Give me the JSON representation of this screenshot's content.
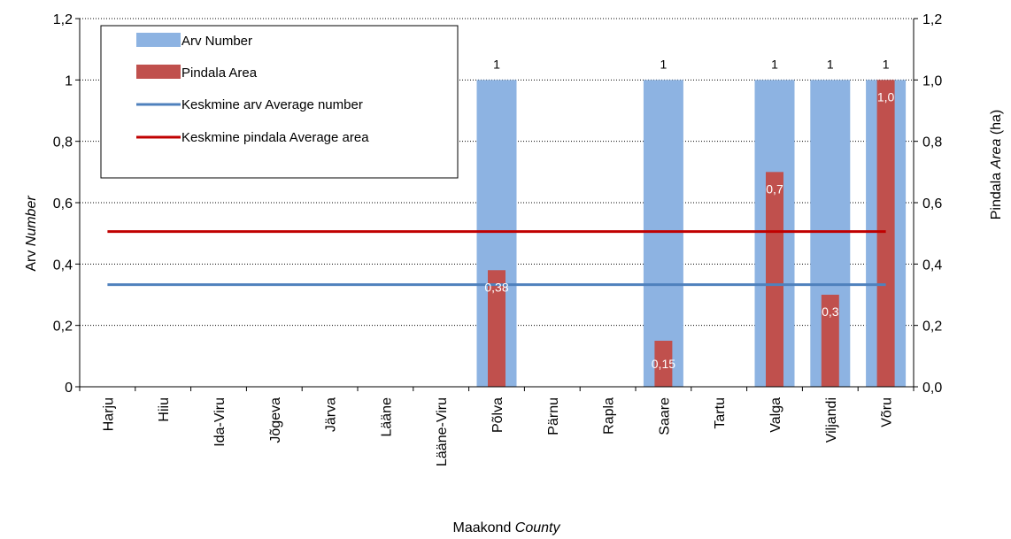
{
  "chart_data": {
    "type": "bar",
    "categories": [
      "Harju",
      "Hiiu",
      "Ida-Viru",
      "Jõgeva",
      "Järva",
      "Lääne",
      "Lääne-Viru",
      "Põlva",
      "Pärnu",
      "Rapla",
      "Saare",
      "Tartu",
      "Valga",
      "Viljandi",
      "Võru"
    ],
    "series": [
      {
        "name": "Arv Number",
        "axis": "left",
        "kind": "bar",
        "color": "#8DB3E2",
        "values": [
          null,
          null,
          null,
          null,
          null,
          null,
          null,
          1,
          null,
          null,
          1,
          null,
          1,
          1,
          1
        ],
        "labels": [
          "",
          "",
          "",
          "",
          "",
          "",
          "",
          "1",
          "",
          "",
          "1",
          "",
          "1",
          "1",
          "1"
        ]
      },
      {
        "name": "Pindala Area",
        "axis": "right",
        "kind": "bar",
        "color": "#C0504D",
        "values": [
          null,
          null,
          null,
          null,
          null,
          null,
          null,
          0.38,
          null,
          null,
          0.15,
          null,
          0.7,
          0.3,
          1.0
        ],
        "labels": [
          "",
          "",
          "",
          "",
          "",
          "",
          "",
          "0,38",
          "",
          "",
          "0,15",
          "",
          "0,7",
          "0,3",
          "1,0"
        ]
      },
      {
        "name": "Keskmine arv Average number",
        "axis": "left",
        "kind": "line",
        "color": "#4F81BD",
        "values": [
          0.333,
          0.333,
          0.333,
          0.333,
          0.333,
          0.333,
          0.333,
          0.333,
          0.333,
          0.333,
          0.333,
          0.333,
          0.333,
          0.333,
          0.333
        ]
      },
      {
        "name": "Keskmine pindala Average area",
        "axis": "right",
        "kind": "line",
        "color": "#C00000",
        "values": [
          0.506,
          0.506,
          0.506,
          0.506,
          0.506,
          0.506,
          0.506,
          0.506,
          0.506,
          0.506,
          0.506,
          0.506,
          0.506,
          0.506,
          0.506
        ]
      }
    ],
    "y_left": {
      "label_plain": "Arv ",
      "label_italic": "Number",
      "ylim": [
        0,
        1.2
      ],
      "ticks": [
        "0",
        "0,2",
        "0,4",
        "0,6",
        "0,8",
        "1",
        "1,2"
      ]
    },
    "y_right": {
      "label_plain": "Pindala ",
      "label_italic": "Area",
      "label_suffix": " (ha)",
      "ylim": [
        0,
        1.2
      ],
      "ticks": [
        "0,0",
        "0,2",
        "0,4",
        "0,6",
        "0,8",
        "1,0",
        "1,2"
      ]
    },
    "x_axis": {
      "label_plain": "Maakond ",
      "label_italic": "County"
    },
    "grid": "horizontal-dotted",
    "legend": "top-left"
  }
}
